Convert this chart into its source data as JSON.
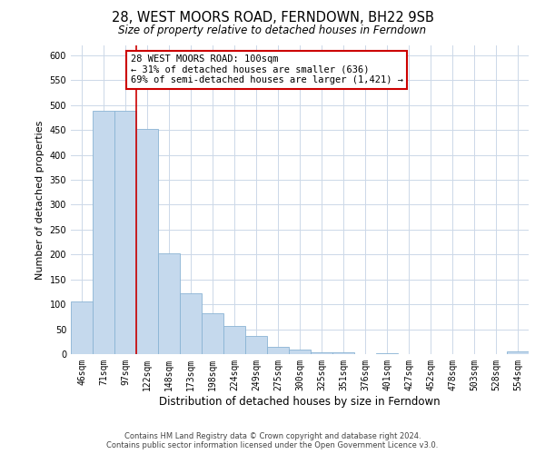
{
  "title": "28, WEST MOORS ROAD, FERNDOWN, BH22 9SB",
  "subtitle": "Size of property relative to detached houses in Ferndown",
  "xlabel": "Distribution of detached houses by size in Ferndown",
  "ylabel": "Number of detached properties",
  "bar_labels": [
    "46sqm",
    "71sqm",
    "97sqm",
    "122sqm",
    "148sqm",
    "173sqm",
    "198sqm",
    "224sqm",
    "249sqm",
    "275sqm",
    "300sqm",
    "325sqm",
    "351sqm",
    "376sqm",
    "401sqm",
    "427sqm",
    "452sqm",
    "478sqm",
    "503sqm",
    "528sqm",
    "554sqm"
  ],
  "bar_values": [
    105,
    488,
    488,
    452,
    202,
    122,
    82,
    57,
    36,
    15,
    10,
    3,
    3,
    0,
    2,
    0,
    0,
    0,
    0,
    0,
    5
  ],
  "bar_color": "#c5d9ed",
  "bar_edgecolor": "#8ab4d4",
  "property_label": "28 WEST MOORS ROAD: 100sqm",
  "annotation_smaller": "← 31% of detached houses are smaller (636)",
  "annotation_larger": "69% of semi-detached houses are larger (1,421) →",
  "annotation_box_color": "#ffffff",
  "annotation_box_edgecolor": "#cc0000",
  "vline_color": "#cc0000",
  "ylim": [
    0,
    620
  ],
  "yticks": [
    0,
    50,
    100,
    150,
    200,
    250,
    300,
    350,
    400,
    450,
    500,
    550,
    600
  ],
  "footer_line1": "Contains HM Land Registry data © Crown copyright and database right 2024.",
  "footer_line2": "Contains public sector information licensed under the Open Government Licence v3.0.",
  "background_color": "#ffffff",
  "grid_color": "#ccd8e8"
}
